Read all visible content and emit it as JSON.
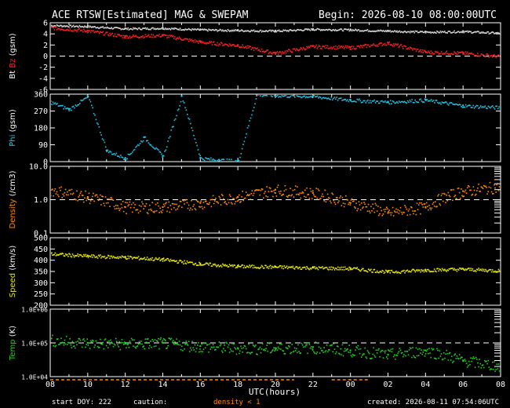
{
  "header": {
    "title": "ACE RTSW[Estimated] MAG & SWEPAM",
    "begin": "Begin: 2026-08-10 08:00:00UTC"
  },
  "footer": {
    "start_doy": "start DOY: 222",
    "caution": "caution:",
    "density_note": "density < 1",
    "created": "created: 2026-08-11 07:54:06UTC"
  },
  "colors": {
    "bt": "#d8d8d8",
    "bz": "#ff2020",
    "phi": "#20c8e8",
    "density": "#ff8c00",
    "speed": "#e8e800",
    "temp": "#20d020",
    "frame": "#ffffff",
    "background": "#000000"
  },
  "chart_data": [
    {
      "type": "scatter",
      "title": "ACE RTSW[Estimated] MAG & SWEPAM",
      "panel": "magnetic-field",
      "ylabel_parts": [
        {
          "text": "Bt",
          "color": "#ffffff"
        },
        {
          "text": "Bz",
          "color": "#ff2020"
        },
        {
          "text": "(gsm)",
          "color": "#ffffff"
        }
      ],
      "ylim": [
        -6,
        6
      ],
      "yscale": "linear",
      "yticks": [
        "6",
        "4",
        "2",
        "0",
        "-2",
        "-4",
        "-6"
      ],
      "ytick_values": [
        6,
        4,
        2,
        0,
        -2,
        -4,
        -6
      ],
      "reference_lines": [
        0
      ],
      "x_hours": [
        0,
        2,
        4,
        6,
        8,
        10,
        12,
        14,
        16,
        18,
        20,
        22,
        24
      ],
      "series": [
        {
          "name": "Bt",
          "color": "#d8d8d8",
          "values": [
            5.6,
            5.4,
            5.0,
            5.1,
            4.8,
            4.7,
            4.6,
            4.9,
            4.8,
            4.6,
            4.4,
            4.5,
            4.2
          ]
        },
        {
          "name": "Bz",
          "color": "#ff2020",
          "values": [
            5.2,
            4.6,
            3.6,
            3.8,
            2.6,
            2.0,
            0.6,
            1.8,
            1.6,
            2.4,
            0.8,
            0.6,
            0.0
          ]
        }
      ]
    },
    {
      "type": "scatter",
      "panel": "phi",
      "ylabel_parts": [
        {
          "text": "Phi",
          "color": "#20c8e8"
        },
        {
          "text": "(gsm)",
          "color": "#ffffff"
        }
      ],
      "ylim": [
        0,
        360
      ],
      "yscale": "linear",
      "yticks": [
        "360",
        "270",
        "180",
        "90",
        "0"
      ],
      "ytick_values": [
        360,
        270,
        180,
        90,
        0
      ],
      "x_hours": [
        0,
        1,
        2,
        3,
        4,
        5,
        6,
        7,
        8,
        9,
        10,
        11,
        12,
        14,
        16,
        18,
        20,
        22,
        24
      ],
      "series": [
        {
          "name": "Phi",
          "color": "#20c8e8",
          "values": [
            320,
            280,
            350,
            60,
            20,
            130,
            30,
            350,
            20,
            10,
            5,
            360,
            355,
            350,
            330,
            320,
            330,
            300,
            290
          ]
        }
      ]
    },
    {
      "type": "scatter",
      "panel": "density",
      "ylabel_parts": [
        {
          "text": "Density",
          "color": "#ff8c00"
        },
        {
          "text": "(/cm3)",
          "color": "#ffffff"
        }
      ],
      "ylim": [
        0.1,
        10.0
      ],
      "yscale": "log",
      "yticks": [
        "10.0",
        "1.0",
        "0.1"
      ],
      "ytick_values": [
        10,
        1,
        0.1
      ],
      "reference_lines": [
        1.0
      ],
      "x_hours": [
        0,
        2,
        4,
        6,
        8,
        10,
        12,
        14,
        16,
        18,
        20,
        22,
        24
      ],
      "series": [
        {
          "name": "Density",
          "color": "#ff8c00",
          "values": [
            2.0,
            1.2,
            0.6,
            0.6,
            0.8,
            1.2,
            2.0,
            1.6,
            0.8,
            0.4,
            0.6,
            1.8,
            2.5
          ]
        }
      ]
    },
    {
      "type": "scatter",
      "panel": "speed",
      "ylabel_parts": [
        {
          "text": "Speed",
          "color": "#e8e800"
        },
        {
          "text": "(km/s)",
          "color": "#ffffff"
        }
      ],
      "ylim": [
        200,
        500
      ],
      "yscale": "linear",
      "yticks": [
        "500",
        "450",
        "400",
        "350",
        "300",
        "250",
        "200"
      ],
      "ytick_values": [
        500,
        450,
        400,
        350,
        300,
        250,
        200
      ],
      "x_hours": [
        0,
        2,
        4,
        6,
        8,
        10,
        12,
        14,
        16,
        18,
        20,
        22,
        24
      ],
      "series": [
        {
          "name": "Speed",
          "color": "#e8e800",
          "values": [
            430,
            420,
            415,
            405,
            385,
            375,
            372,
            368,
            365,
            350,
            358,
            362,
            355
          ]
        }
      ]
    },
    {
      "type": "scatter",
      "panel": "temperature",
      "ylabel_parts": [
        {
          "text": "Temp",
          "color": "#20d020"
        },
        {
          "text": "(K)",
          "color": "#ffffff"
        }
      ],
      "ylim": [
        10000,
        1000000
      ],
      "yscale": "log",
      "yticks": [
        "1.0E+06",
        "1.0E+05",
        "1.0E+04"
      ],
      "ytick_values": [
        1000000,
        100000,
        10000
      ],
      "reference_lines": [
        100000
      ],
      "x_hours": [
        0,
        2,
        4,
        6,
        8,
        10,
        12,
        14,
        16,
        18,
        20,
        22,
        24
      ],
      "series": [
        {
          "name": "Temp",
          "color": "#20d020",
          "values": [
            120000,
            100000,
            95000,
            100000,
            80000,
            70000,
            70000,
            75000,
            60000,
            45000,
            60000,
            30000,
            20000
          ]
        }
      ]
    }
  ],
  "xaxis": {
    "label": "UTC(hours)",
    "ticks": [
      "08",
      "10",
      "12",
      "14",
      "16",
      "18",
      "20",
      "22",
      "00",
      "02",
      "04",
      "06",
      "08"
    ],
    "tick_hours": [
      0,
      2,
      4,
      6,
      8,
      10,
      12,
      14,
      16,
      18,
      20,
      22,
      24
    ],
    "low_density_hours": [
      [
        0,
        13
      ],
      [
        15,
        17
      ]
    ]
  }
}
